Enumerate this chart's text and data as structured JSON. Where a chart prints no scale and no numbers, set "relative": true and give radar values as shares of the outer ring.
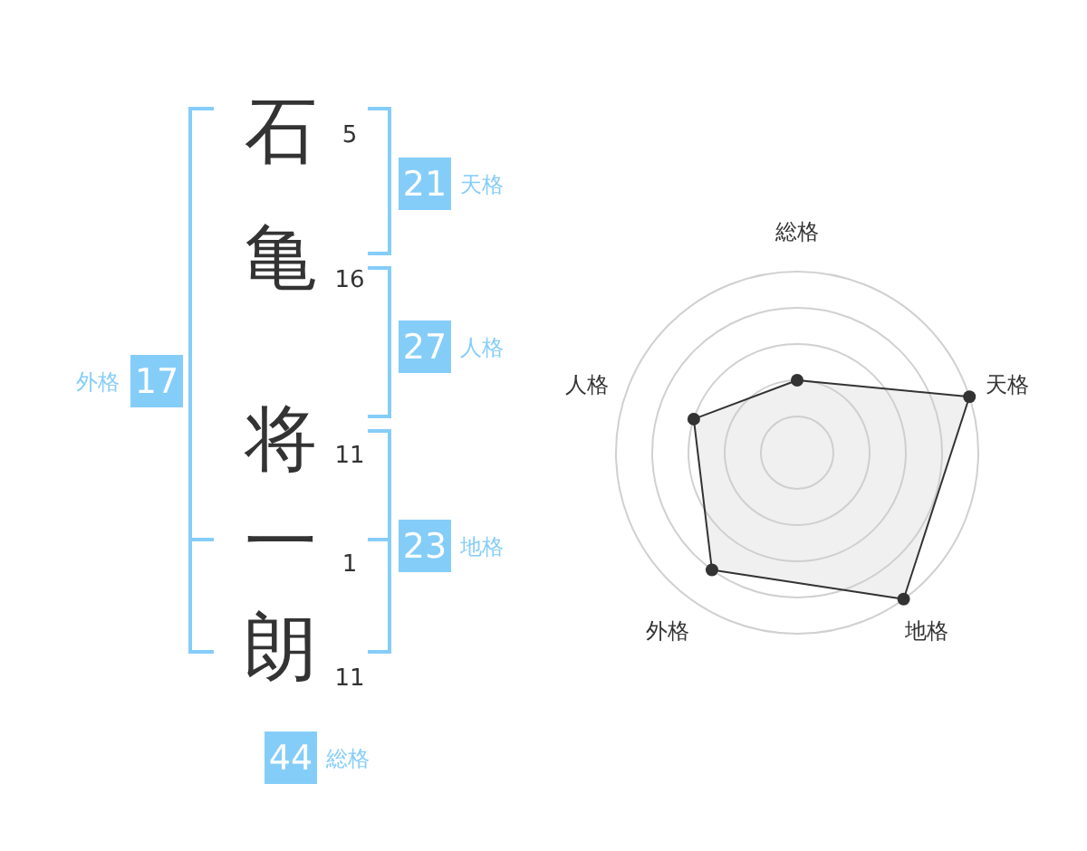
{
  "chart_data": [
    {
      "type": "other",
      "categories": [
        "石",
        "亀",
        "将",
        "一",
        "朗"
      ],
      "values": [
        5,
        16,
        11,
        1,
        11
      ],
      "data_labels": true,
      "color": "#85cdf9",
      "annotations": [
        "21",
        "天格",
        "27",
        "人格",
        "23",
        "地格",
        "17",
        "外格",
        "44",
        "総格"
      ]
    },
    {
      "type": "radar",
      "categories": [
        "総格",
        "天格",
        "地格",
        "外格",
        "人格"
      ],
      "relative": true,
      "grid": true,
      "marker": "circle",
      "series": [
        {
          "color": "#333333",
          "values": [
            0.4,
            1,
            1,
            0.8,
            0.6
          ]
        }
      ]
    }
  ]
}
